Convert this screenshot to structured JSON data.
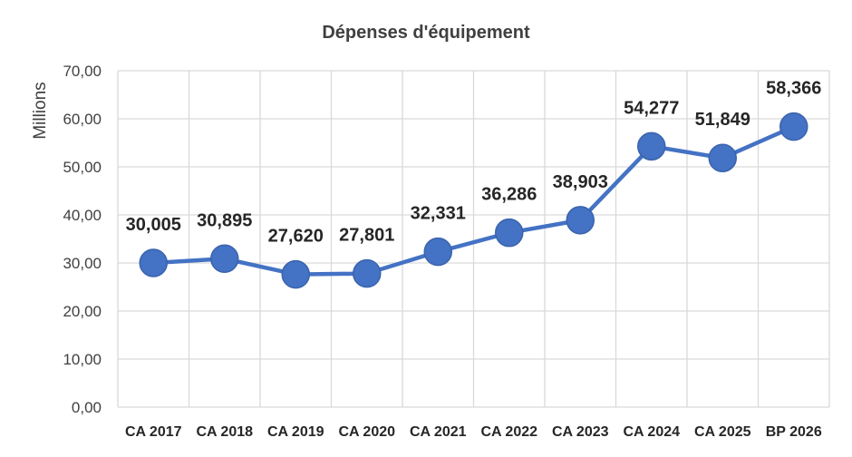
{
  "chart_data": {
    "type": "line",
    "title": "Dépenses d'équipement",
    "ylabel": "Millions",
    "xlabel": "",
    "categories": [
      "CA 2017",
      "CA 2018",
      "CA 2019",
      "CA 2020",
      "CA 2021",
      "CA 2022",
      "CA 2023",
      "CA 2024",
      "CA 2025",
      "BP 2026"
    ],
    "values": [
      30.005,
      30.895,
      27.62,
      27.801,
      32.331,
      36.286,
      38.903,
      54.277,
      51.849,
      58.366
    ],
    "data_labels": [
      "30,005",
      "30,895",
      "27,620",
      "27,801",
      "32,331",
      "36,286",
      "38,903",
      "54,277",
      "51,849",
      "58,366"
    ],
    "ylim": [
      0,
      70
    ],
    "yticks": [
      0,
      10,
      20,
      30,
      40,
      50,
      60,
      70
    ],
    "ytick_labels": [
      "0,00",
      "10,00",
      "20,00",
      "30,00",
      "40,00",
      "50,00",
      "60,00",
      "70,00"
    ],
    "grid": true,
    "legend": "none",
    "series_color": "#4472c4"
  }
}
